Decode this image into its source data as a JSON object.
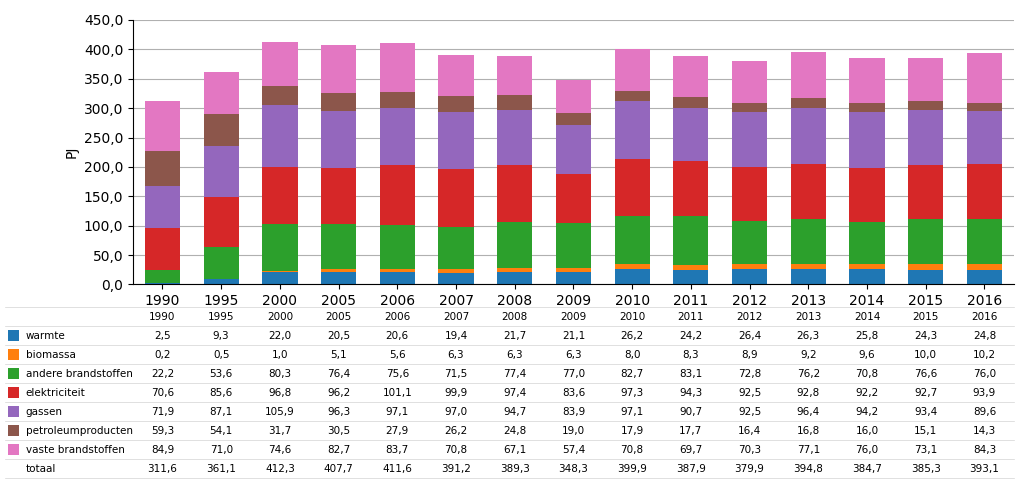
{
  "chart_data": {
    "type": "bar",
    "stacked": true,
    "grid": true,
    "ylabel": "PJ",
    "categories": [
      "1990",
      "1995",
      "2000",
      "2005",
      "2006",
      "2007",
      "2008",
      "2009",
      "2010",
      "2011",
      "2012",
      "2013",
      "2014",
      "2015",
      "2016"
    ],
    "series": [
      {
        "name": "warmte",
        "values": [
          2.5,
          9.3,
          22.0,
          20.5,
          20.6,
          19.4,
          21.7,
          21.1,
          26.2,
          24.2,
          26.4,
          26.3,
          25.8,
          24.3,
          24.8
        ],
        "value_labels": [
          "2,5",
          "9,3",
          "22,0",
          "20,5",
          "20,6",
          "19,4",
          "21,7",
          "21,1",
          "26,2",
          "24,2",
          "26,4",
          "26,3",
          "25,8",
          "24,3",
          "24,8"
        ]
      },
      {
        "name": "biomassa",
        "values": [
          0.2,
          0.5,
          1.0,
          5.1,
          5.6,
          6.3,
          6.3,
          6.3,
          8.0,
          8.3,
          8.9,
          9.2,
          9.6,
          10.0,
          10.2
        ],
        "value_labels": [
          "0,2",
          "0,5",
          "1,0",
          "5,1",
          "5,6",
          "6,3",
          "6,3",
          "6,3",
          "8,0",
          "8,3",
          "8,9",
          "9,2",
          "9,6",
          "10,0",
          "10,2"
        ]
      },
      {
        "name": "andere brandstoffen",
        "values": [
          22.2,
          53.6,
          80.3,
          76.4,
          75.6,
          71.5,
          77.4,
          77.0,
          82.7,
          83.1,
          72.8,
          76.2,
          70.8,
          76.6,
          76.0
        ],
        "value_labels": [
          "22,2",
          "53,6",
          "80,3",
          "76,4",
          "75,6",
          "71,5",
          "77,4",
          "77,0",
          "82,7",
          "83,1",
          "72,8",
          "76,2",
          "70,8",
          "76,6",
          "76,0"
        ]
      },
      {
        "name": "elektriciteit",
        "values": [
          70.6,
          85.6,
          96.8,
          96.2,
          101.1,
          99.9,
          97.4,
          83.6,
          97.3,
          94.3,
          92.5,
          92.8,
          92.2,
          92.7,
          93.9
        ],
        "value_labels": [
          "70,6",
          "85,6",
          "96,8",
          "96,2",
          "101,1",
          "99,9",
          "97,4",
          "83,6",
          "97,3",
          "94,3",
          "92,5",
          "92,8",
          "92,2",
          "92,7",
          "93,9"
        ]
      },
      {
        "name": "gassen",
        "values": [
          71.9,
          87.1,
          105.9,
          96.3,
          97.1,
          97.0,
          94.7,
          83.9,
          97.1,
          90.7,
          92.5,
          96.4,
          94.2,
          93.4,
          89.6
        ],
        "value_labels": [
          "71,9",
          "87,1",
          "105,9",
          "96,3",
          "97,1",
          "97,0",
          "94,7",
          "83,9",
          "97,1",
          "90,7",
          "92,5",
          "96,4",
          "94,2",
          "93,4",
          "89,6"
        ]
      },
      {
        "name": "petroleumproducten",
        "values": [
          59.3,
          54.1,
          31.7,
          30.5,
          27.9,
          26.2,
          24.8,
          19.0,
          17.9,
          17.7,
          16.4,
          16.8,
          16.0,
          15.1,
          14.3
        ],
        "value_labels": [
          "59,3",
          "54,1",
          "31,7",
          "30,5",
          "27,9",
          "26,2",
          "24,8",
          "19,0",
          "17,9",
          "17,7",
          "16,4",
          "16,8",
          "16,0",
          "15,1",
          "14,3"
        ]
      },
      {
        "name": "vaste brandstoffen",
        "values": [
          84.9,
          71.0,
          74.6,
          82.7,
          83.7,
          70.8,
          67.1,
          57.4,
          70.8,
          69.7,
          70.3,
          77.1,
          76.0,
          73.1,
          84.3
        ],
        "value_labels": [
          "84,9",
          "71,0",
          "74,6",
          "82,7",
          "83,7",
          "70,8",
          "67,1",
          "57,4",
          "70,8",
          "69,7",
          "70,3",
          "77,1",
          "76,0",
          "73,1",
          "84,3"
        ]
      }
    ],
    "totals": {
      "name": "totaal",
      "values": [
        311.6,
        361.1,
        412.3,
        407.7,
        411.6,
        391.2,
        389.3,
        348.3,
        399.9,
        387.9,
        379.9,
        394.8,
        384.7,
        385.3,
        393.1
      ],
      "value_labels": [
        "311,6",
        "361,1",
        "412,3",
        "407,7",
        "411,6",
        "391,2",
        "389,3",
        "348,3",
        "399,9",
        "387,9",
        "379,9",
        "394,8",
        "384,7",
        "385,3",
        "393,1"
      ]
    },
    "ylim": [
      0,
      450
    ],
    "yticks": [
      {
        "value": 0,
        "label": "0,0"
      },
      {
        "value": 50,
        "label": "50,0"
      },
      {
        "value": 100,
        "label": "100,0"
      },
      {
        "value": 150,
        "label": "150,0"
      },
      {
        "value": 200,
        "label": "200,0"
      },
      {
        "value": 250,
        "label": "250,0"
      },
      {
        "value": 300,
        "label": "300,0"
      },
      {
        "value": 350,
        "label": "350,0"
      },
      {
        "value": 400,
        "label": "400,0"
      },
      {
        "value": 450,
        "label": "450,0"
      }
    ]
  }
}
